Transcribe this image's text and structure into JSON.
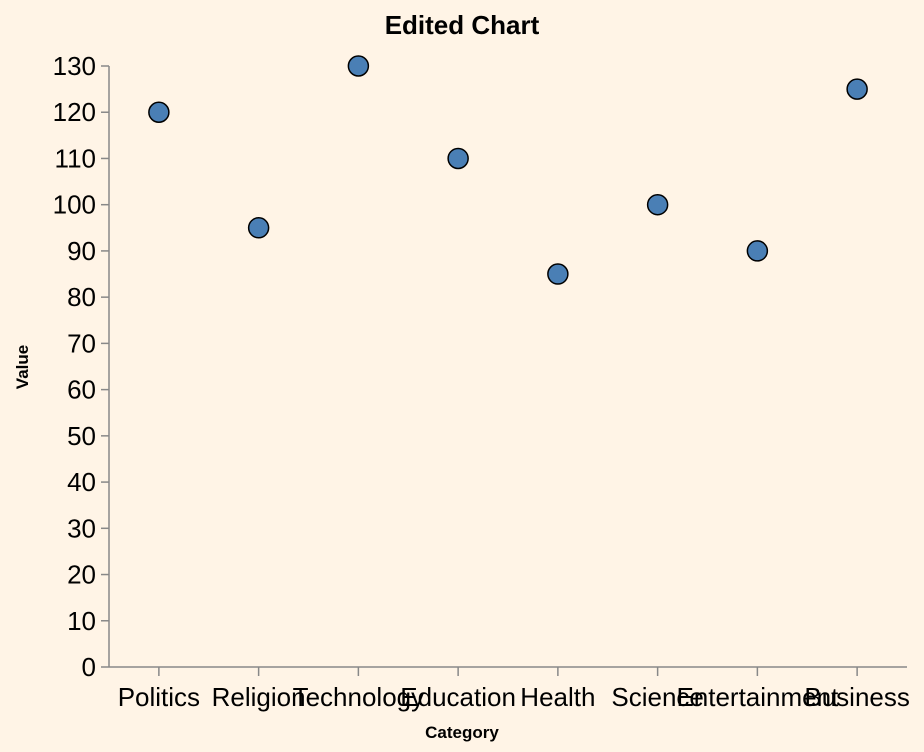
{
  "chart_data": {
    "type": "scatter",
    "title": "Edited Chart",
    "xlabel": "Category",
    "ylabel": "Value",
    "categories": [
      "Politics",
      "Religion",
      "Technology",
      "Education",
      "Health",
      "Science",
      "Entertainment",
      "Business"
    ],
    "values": [
      120,
      95,
      130,
      110,
      85,
      100,
      90,
      125
    ],
    "ylim": [
      0,
      130
    ],
    "yticks": [
      0,
      10,
      20,
      30,
      40,
      50,
      60,
      70,
      80,
      90,
      100,
      110,
      120,
      130
    ],
    "grid": false,
    "colors": {
      "point": "#4a7fb5",
      "background": "#fff4e6"
    }
  }
}
